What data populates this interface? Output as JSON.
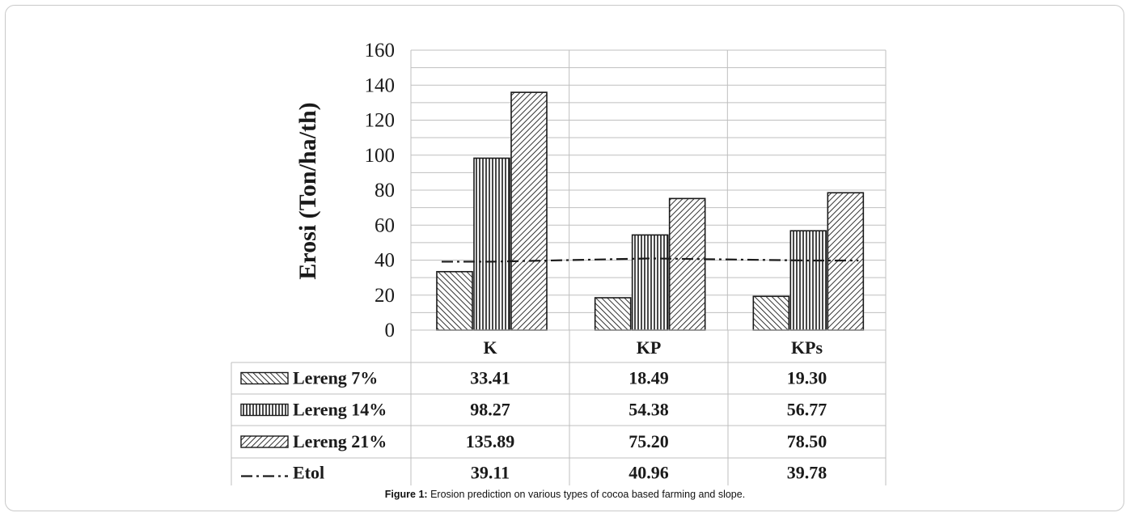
{
  "chart_data": {
    "type": "bar",
    "ylabel": "Erosi (Ton/ha/th)",
    "ylim": [
      0,
      160
    ],
    "yticks": [
      0,
      20,
      40,
      60,
      80,
      100,
      120,
      140,
      160
    ],
    "categories": [
      "K",
      "KP",
      "KPs"
    ],
    "grid": true,
    "series": [
      {
        "name": "Lereng 7%",
        "kind": "bar",
        "pattern": "backslash",
        "values": [
          33.41,
          18.49,
          19.3
        ],
        "labels": [
          "33.41",
          "18.49",
          "19.30"
        ]
      },
      {
        "name": "Lereng 14%",
        "kind": "bar",
        "pattern": "vertical",
        "values": [
          98.27,
          54.38,
          56.77
        ],
        "labels": [
          "98.27",
          "54.38",
          "56.77"
        ]
      },
      {
        "name": "Lereng 21%",
        "kind": "bar",
        "pattern": "slash",
        "values": [
          135.89,
          75.2,
          78.5
        ],
        "labels": [
          "135.89",
          "75.20",
          "78.50"
        ]
      },
      {
        "name": "Etol",
        "kind": "line",
        "style": "dash-dot",
        "values": [
          39.11,
          40.96,
          39.78
        ],
        "labels": [
          "39.11",
          "40.96",
          "39.78"
        ]
      }
    ],
    "colors": {
      "ink": "#1a1a1a",
      "grid": "#bfbfbf"
    }
  },
  "caption": {
    "label": "Figure 1:",
    "text": " Erosion prediction on various types of cocoa based farming and slope."
  }
}
